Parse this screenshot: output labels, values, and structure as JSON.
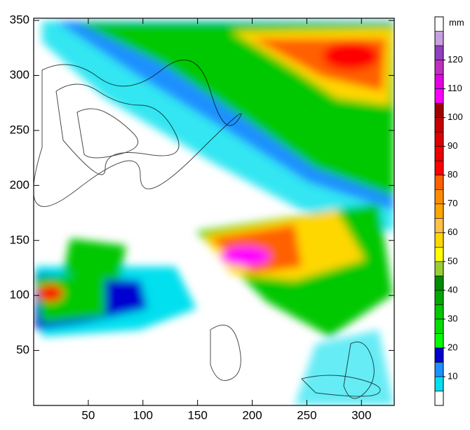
{
  "map": {
    "xlim": [
      0,
      330
    ],
    "ylim": [
      0,
      352
    ],
    "xticks": [
      50,
      100,
      150,
      200,
      250,
      300
    ],
    "yticks": [
      50,
      100,
      150,
      200,
      250,
      300,
      350
    ],
    "colorbar": {
      "unit": "mm",
      "range": [
        0,
        135
      ],
      "ticks": [
        10,
        20,
        30,
        40,
        50,
        60,
        70,
        80,
        90,
        100,
        110,
        120
      ],
      "colors": [
        "#ffffff",
        "#00e0ee",
        "#1e90ff",
        "#0000d0",
        "#00ff00",
        "#00e000",
        "#00c800",
        "#00a800",
        "#008c00",
        "#9acd32",
        "#ffff00",
        "#ffd700",
        "#ffc04a",
        "#ffa500",
        "#ff8c00",
        "#ff6000",
        "#ff0000",
        "#ee0000",
        "#dd0000",
        "#c80000",
        "#a00000",
        "#ff00ff",
        "#e600e6",
        "#c030c0",
        "#9040c0",
        "#c8a0e0",
        "#ffffff"
      ]
    }
  }
}
